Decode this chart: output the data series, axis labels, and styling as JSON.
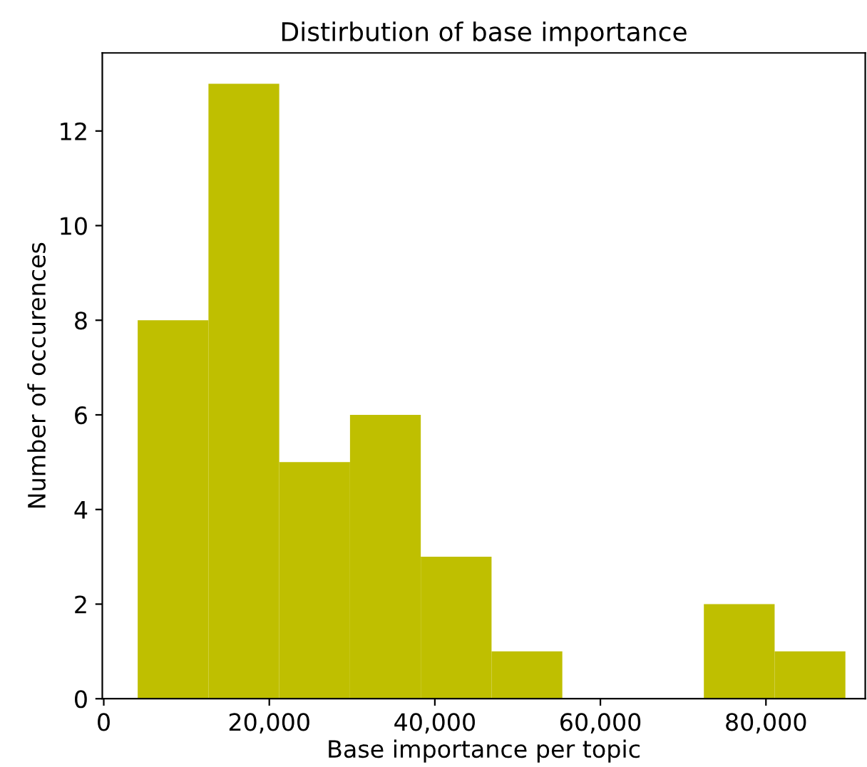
{
  "chart_data": {
    "type": "histogram",
    "title": "Distirbution of base importance",
    "xlabel": "Base importance per topic",
    "ylabel": "Number of occurences",
    "bins": [
      4100,
      12650,
      21200,
      29750,
      38300,
      46850,
      55400,
      63950,
      72500,
      81050,
      89600
    ],
    "values": [
      8,
      13,
      5,
      6,
      3,
      1,
      0,
      0,
      2,
      1
    ],
    "color": "#bfbf00",
    "xlim": [
      -175,
      92000
    ],
    "xticks": [
      {
        "value": 0,
        "label": "0"
      },
      {
        "value": 20000,
        "label": "20,000"
      },
      {
        "value": 40000,
        "label": "40,000"
      },
      {
        "value": 60000,
        "label": "60,000"
      },
      {
        "value": 80000,
        "label": "80,000"
      }
    ],
    "ylim": [
      0,
      13.65
    ],
    "yticks": [
      0,
      2,
      4,
      6,
      8,
      10,
      12
    ],
    "grid": false
  }
}
